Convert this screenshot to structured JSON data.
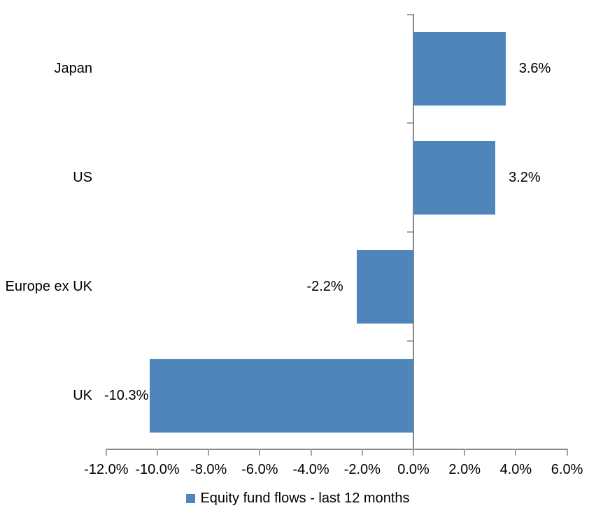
{
  "chart_data": {
    "type": "bar",
    "orientation": "horizontal",
    "title": "",
    "categories": [
      "Japan",
      "US",
      "Europe ex UK",
      "UK"
    ],
    "series": [
      {
        "name": "Equity fund flows - last 12 months",
        "values": [
          3.6,
          3.2,
          -2.2,
          -10.3
        ],
        "data_labels": [
          "3.6%",
          "3.2%",
          "-2.2%",
          "-10.3%"
        ]
      }
    ],
    "xlabel": "",
    "ylabel": "",
    "xlim": [
      -12,
      6
    ],
    "x_ticks": [
      -12,
      -10,
      -8,
      -6,
      -4,
      -2,
      0,
      2,
      4,
      6
    ],
    "x_tick_labels": [
      "-12.0%",
      "-10.0%",
      "-8.0%",
      "-6.0%",
      "-4.0%",
      "-2.0%",
      "0.0%",
      "2.0%",
      "4.0%",
      "6.0%"
    ],
    "grid": false,
    "legend_position": "bottom",
    "data_label_position": "outside-end",
    "bar_color": "#4e86bc",
    "axis_color": "#8a8a8a",
    "tick_color": "#a3a3a3",
    "text_color": "#000000"
  },
  "legend": {
    "label": "Equity fund flows - last 12 months",
    "swatch_color": "#4e86bc"
  }
}
